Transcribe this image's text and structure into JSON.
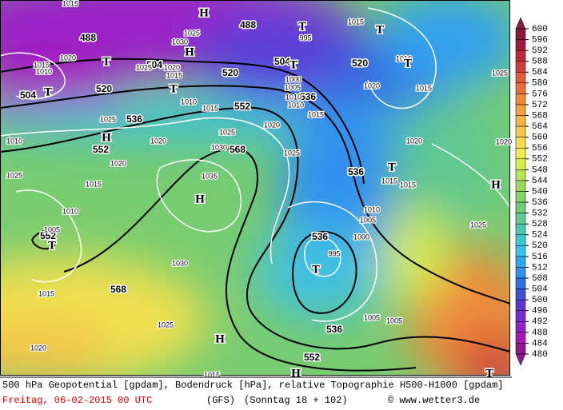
{
  "map_labels": {
    "geopotential": [
      "488",
      "488",
      "504",
      "504",
      "520",
      "520",
      "520",
      "536",
      "536",
      "536",
      "536",
      "536",
      "552",
      "552",
      "552",
      "552",
      "568",
      "568",
      "504"
    ],
    "pressure": [
      "1015",
      "1025",
      "1030",
      "1020",
      "1015",
      "1010",
      "1025",
      "1020",
      "1015",
      "1010",
      "1015",
      "1025",
      "1010",
      "1020",
      "1025",
      "1030",
      "1020",
      "1025",
      "1020",
      "1035",
      "1025",
      "1015",
      "1010",
      "1005",
      "1030",
      "1015",
      "1025",
      "1020",
      "1015",
      "1015",
      "1010",
      "1020",
      "1015",
      "1015",
      "1010",
      "1020",
      "1015",
      "1015",
      "1010",
      "1005",
      "1000",
      "995",
      "1005",
      "1005",
      "1025",
      "1025",
      "1020",
      "995",
      "1000",
      "1005",
      "1010"
    ],
    "centers": [
      "H",
      "H",
      "T",
      "T",
      "T",
      "T",
      "T",
      "T",
      "H",
      "H",
      "T",
      "H",
      "T",
      "T",
      "T",
      "H",
      "H",
      "T"
    ]
  },
  "colorbar": {
    "ticks": [
      600,
      596,
      592,
      588,
      584,
      580,
      576,
      572,
      568,
      564,
      560,
      556,
      552,
      548,
      544,
      540,
      536,
      532,
      528,
      524,
      520,
      516,
      512,
      508,
      504,
      500,
      496,
      492,
      488,
      484,
      480
    ],
    "colors": [
      "#8b1a3a",
      "#a31d3a",
      "#c0283a",
      "#d43a3a",
      "#e05a3a",
      "#e8703a",
      "#ee8a3a",
      "#f2a040",
      "#f4b444",
      "#f6c84a",
      "#f6dc50",
      "#eeea50",
      "#d8ec50",
      "#b8e454",
      "#98dc5c",
      "#80d468",
      "#70cc78",
      "#60c890",
      "#50c8b0",
      "#40c8d0",
      "#38c0e8",
      "#30a8f0",
      "#3090f0",
      "#3070e8",
      "#4050d8",
      "#5a38d0",
      "#7a2ad0",
      "#9220c8",
      "#a818b8",
      "#901888"
    ]
  },
  "footer": {
    "caption": "500 hPa Geopotential [gpdam], Bodendruck [hPa], relative Topographie H500-H1000 [gpdam]",
    "date": "Freitag, 06-02-2015  00 UTC",
    "model": "(GFS)",
    "forecast": "(Sonntag 18 + 102)",
    "credit": "© www.wetter3.de"
  }
}
